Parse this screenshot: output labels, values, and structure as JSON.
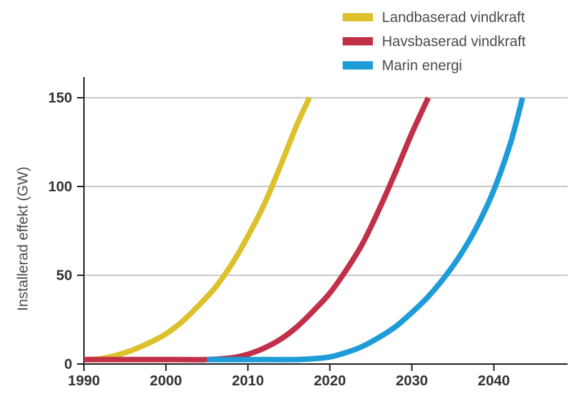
{
  "chart_data": {
    "type": "line",
    "title": "",
    "xlabel": "",
    "ylabel": "Installerad effekt (GW)",
    "xlim": [
      1990,
      2049
    ],
    "ylim": [
      0,
      150
    ],
    "x_ticks": [
      "1990",
      "2000",
      "2010",
      "2020",
      "2030",
      "2040"
    ],
    "y_ticks": [
      "0",
      "50",
      "100",
      "150"
    ],
    "grid": "horizontal",
    "legend_position": "top-right",
    "series": [
      {
        "name": "Landbaserad vindkraft",
        "color": "#dcc12c",
        "x": [
          1990,
          1992,
          1994,
          1996,
          1998,
          2000,
          2002,
          2004,
          2006,
          2008,
          2010,
          2012,
          2014,
          2016,
          2017.5
        ],
        "y": [
          2.5,
          3,
          5,
          8,
          12,
          17,
          24,
          33,
          43,
          56,
          72,
          90,
          112,
          135,
          150
        ]
      },
      {
        "name": "Havsbaserad vindkraft",
        "color": "#c22f48",
        "x": [
          1990,
          2000,
          2005,
          2008,
          2010,
          2012,
          2014,
          2016,
          2018,
          2020,
          2022,
          2024,
          2026,
          2028,
          2030,
          2032
        ],
        "y": [
          2.5,
          2.5,
          2.5,
          3.5,
          5.5,
          9,
          14,
          21,
          30,
          40,
          53,
          68,
          87,
          108,
          130,
          150
        ]
      },
      {
        "name": "Marin energi",
        "color": "#1d9cd8",
        "x": [
          2005,
          2012,
          2016,
          2018,
          2020,
          2022,
          2024,
          2026,
          2028,
          2030,
          2032,
          2034,
          2036,
          2038,
          2040,
          2042,
          2043.5
        ],
        "y": [
          2.5,
          2.5,
          2.5,
          3,
          4,
          6.5,
          10,
          15,
          21,
          29,
          38,
          49,
          62,
          78,
          98,
          124,
          150
        ]
      }
    ]
  }
}
